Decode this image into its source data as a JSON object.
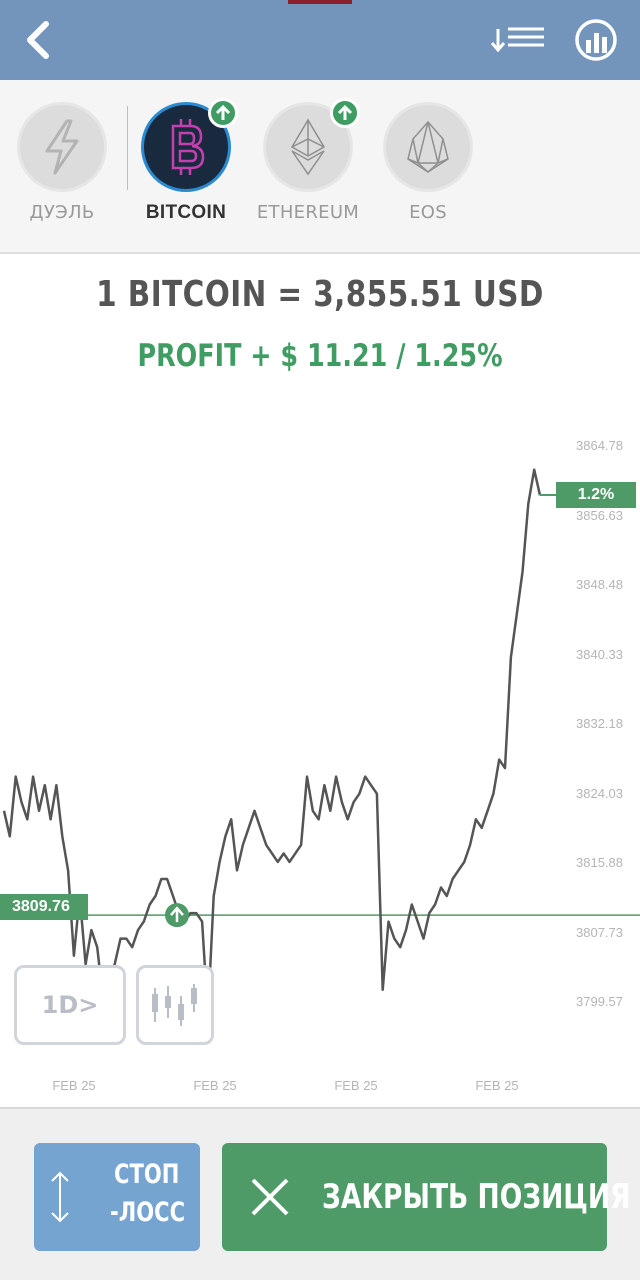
{
  "header": {
    "back_icon": "chevron-left-icon",
    "sort_icon": "sort-list-icon",
    "stats_icon": "bar-chart-circle-icon",
    "background": "#7395bb"
  },
  "assets": [
    {
      "label": "ДУЭЛЬ",
      "icon": "lightning-icon",
      "active": false,
      "badge": false
    },
    {
      "label": "BITCOIN",
      "icon": "bitcoin-icon",
      "active": true,
      "badge": true
    },
    {
      "label": "ETHEREUM",
      "icon": "ethereum-icon",
      "active": false,
      "badge": true
    },
    {
      "label": "EOS",
      "icon": "eos-icon",
      "active": false,
      "badge": false
    }
  ],
  "price_line": "1 BITCOIN = 3,855.51 USD",
  "profit_line": "PROFIT + $ 11.21 / 1.25%",
  "chart_data": {
    "type": "line",
    "y_ticks": [
      "3864.78",
      "3856.63",
      "3848.48",
      "3840.33",
      "3832.18",
      "3824.03",
      "3815.88",
      "3807.73",
      "3799.57"
    ],
    "x_ticks": [
      "FEB 25",
      "FEB 25",
      "FEB 25",
      "FEB 25"
    ],
    "ylim": [
      3799.57,
      3864.78
    ],
    "open_price_label": "3809.76",
    "open_price": 3809.76,
    "current_change_label": "1.2%",
    "series": [
      {
        "values": [
          3822,
          3819,
          3826,
          3823,
          3821,
          3826,
          3822,
          3825,
          3821,
          3825,
          3819,
          3815,
          3805,
          3812,
          3804,
          3808,
          3806,
          3800,
          3802,
          3804,
          3807,
          3807,
          3806,
          3808,
          3809,
          3811,
          3812,
          3814,
          3814,
          3812,
          3810,
          3809,
          3810,
          3810,
          3809,
          3798,
          3812,
          3816,
          3819,
          3821,
          3815,
          3818,
          3820,
          3822,
          3820,
          3818,
          3817,
          3816,
          3817,
          3816,
          3817,
          3818,
          3826,
          3822,
          3821,
          3825,
          3822,
          3826,
          3823,
          3821,
          3823,
          3824,
          3826,
          3825,
          3824,
          3801,
          3809,
          3807,
          3806,
          3808,
          3811,
          3809,
          3807,
          3810,
          3811,
          3813,
          3812,
          3814,
          3815,
          3816,
          3818,
          3821,
          3820,
          3822,
          3824,
          3828,
          3827,
          3840,
          3845,
          3850,
          3858,
          3862,
          3859
        ]
      }
    ],
    "line_color": "#555555",
    "open_line_color": "#4e9b67"
  },
  "controls": {
    "timeframe_label": "1D>",
    "candles_icon": "candlestick-icon"
  },
  "buttons": {
    "stop_loss_line1": "СТОП",
    "stop_loss_line2": "-ЛОСС",
    "stop_loss_icon": "vertical-arrows-icon",
    "close_label": "ЗАКРЫТЬ ПОЗИЦИЯ",
    "close_icon": "close-icon"
  }
}
